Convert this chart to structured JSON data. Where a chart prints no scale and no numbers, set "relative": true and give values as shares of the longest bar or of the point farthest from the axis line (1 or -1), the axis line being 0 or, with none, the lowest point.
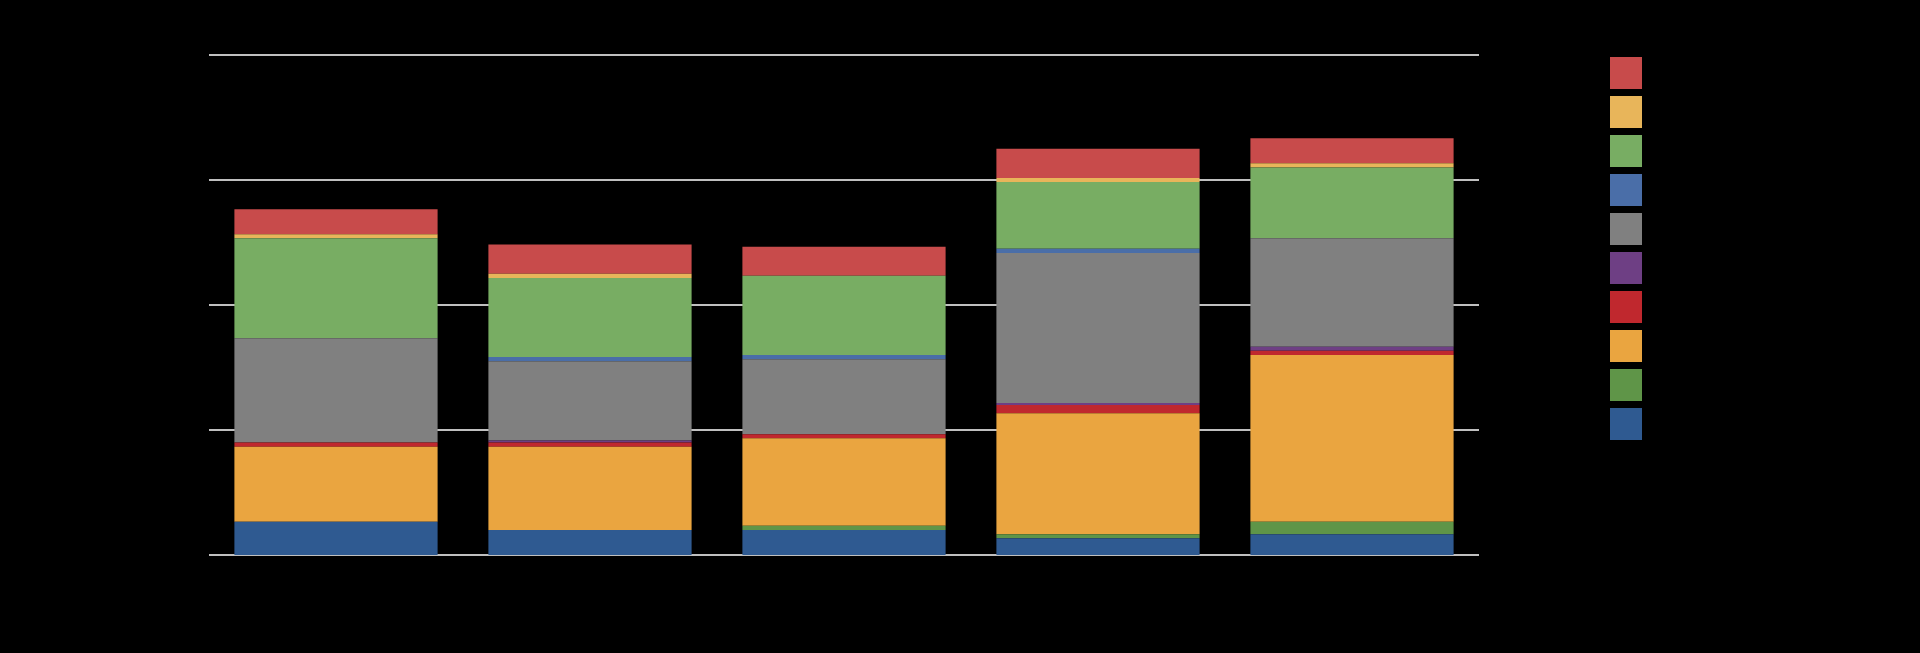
{
  "chart_data": {
    "type": "bar",
    "categories": [
      null,
      null,
      null,
      null,
      null
    ],
    "stacked": true,
    "relative": true,
    "grid": "y",
    "tick_labels": false,
    "series": [
      {
        "color": "#2f5a91",
        "values": [
          0.08,
          0.06,
          0.06,
          0.04,
          0.05
        ]
      },
      {
        "color": "#5f9548",
        "values": [
          0,
          0,
          0.01,
          0.01,
          0.03
        ]
      },
      {
        "color": "#eaa540",
        "values": [
          0.18,
          0.2,
          0.21,
          0.29,
          0.4
        ]
      },
      {
        "color": "#c0282e",
        "values": [
          0.01,
          0.01,
          0.01,
          0.02,
          0.01
        ]
      },
      {
        "color": "#6e3f84",
        "values": [
          0,
          0.005,
          0,
          0.005,
          0.01
        ]
      },
      {
        "color": "#808080",
        "values": [
          0.25,
          0.19,
          0.18,
          0.36,
          0.26
        ]
      },
      {
        "color": "#4a6ea8",
        "values": [
          0,
          0.01,
          0.01,
          0.01,
          0
        ]
      },
      {
        "color": "#78ad63",
        "values": [
          0.24,
          0.19,
          0.19,
          0.16,
          0.17
        ]
      },
      {
        "color": "#e8b55a",
        "values": [
          0.01,
          0.01,
          0,
          0.01,
          0.01
        ]
      },
      {
        "color": "#c84b4b",
        "values": [
          0.06,
          0.07,
          0.07,
          0.07,
          0.06
        ]
      }
    ]
  }
}
